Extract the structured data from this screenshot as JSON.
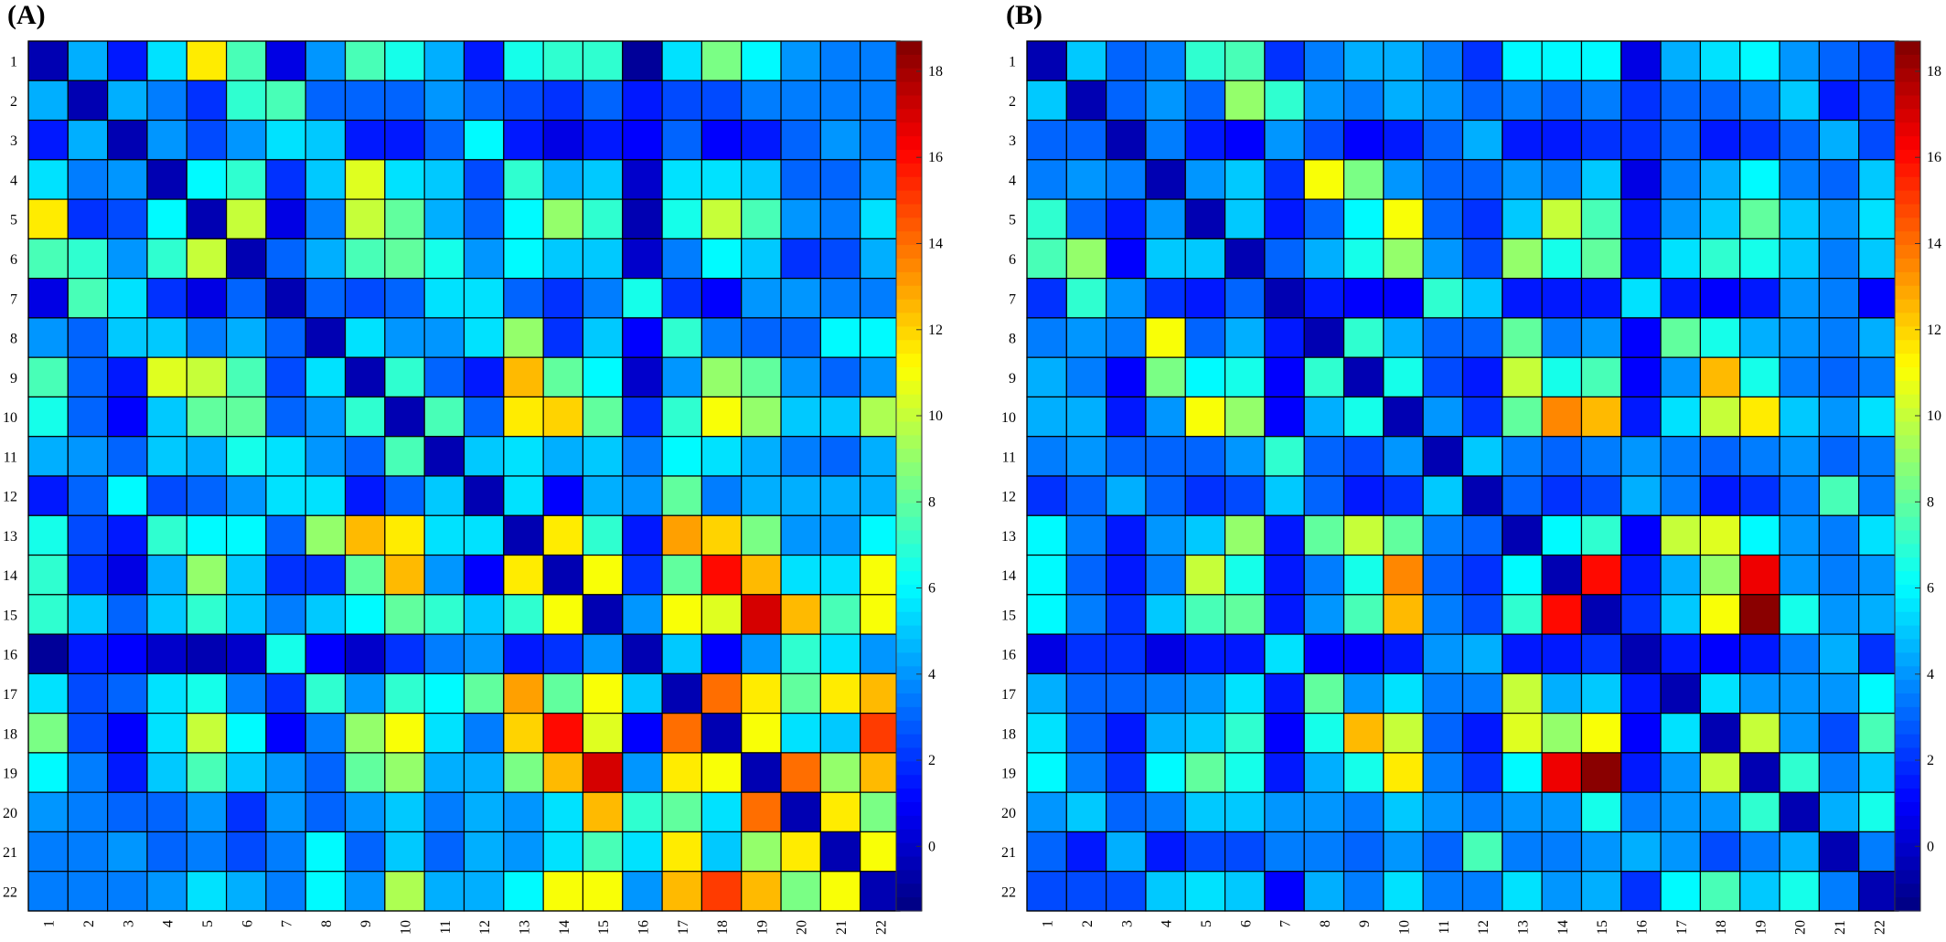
{
  "chart_data": [
    {
      "type": "heatmap",
      "title": "(A)",
      "categories": [
        "1",
        "2",
        "3",
        "4",
        "5",
        "6",
        "7",
        "8",
        "9",
        "10",
        "11",
        "12",
        "13",
        "14",
        "15",
        "16",
        "17",
        "18",
        "19",
        "20",
        "21",
        "22"
      ],
      "colorbar_ticks": [
        0,
        2,
        4,
        6,
        8,
        10,
        12,
        14,
        16,
        18
      ],
      "colorbar_range": [
        -1.5,
        18.7
      ],
      "colormap": "jet",
      "values": [
        [
          -0.5,
          4.5,
          1.5,
          5.5,
          11.5,
          7.5,
          0.5,
          4,
          7.5,
          6.5,
          4.5,
          1.5,
          6.5,
          7,
          7,
          -1,
          5.5,
          8.5,
          6,
          4,
          3.5,
          3.5
        ],
        [
          4.5,
          -0.5,
          4.5,
          3.5,
          2,
          7,
          7.5,
          3,
          3,
          3,
          4,
          3,
          2.5,
          2,
          3,
          1.5,
          2.5,
          2.5,
          3.5,
          3.5,
          3.5,
          3.5
        ],
        [
          1.5,
          4.5,
          -0.5,
          4,
          2.5,
          4,
          5.5,
          5,
          1.5,
          1.5,
          3,
          6,
          1.5,
          0.5,
          1.5,
          1,
          3,
          1,
          1.5,
          3,
          4,
          3.5
        ],
        [
          5.5,
          3.5,
          4,
          -0.5,
          6,
          7,
          2,
          5,
          10.5,
          5.5,
          5,
          2.5,
          7,
          4.5,
          5,
          0,
          5.5,
          5.5,
          5,
          3,
          3,
          4
        ],
        [
          11.5,
          2,
          2.5,
          6,
          -0.5,
          10,
          0.5,
          3.5,
          10,
          8,
          4.5,
          3,
          6,
          9,
          7,
          -0.5,
          6.5,
          10,
          7.5,
          4,
          3.5,
          5.5
        ],
        [
          7.5,
          7,
          4,
          7,
          10,
          -0.5,
          3,
          4.5,
          7.5,
          8,
          6.5,
          4,
          6,
          5,
          5,
          0,
          3.5,
          6,
          5,
          2,
          2.5,
          4.5
        ],
        [
          0.5,
          7.5,
          5.5,
          2,
          0.5,
          3,
          -0.5,
          3,
          2.5,
          3,
          5.5,
          5.5,
          3,
          2,
          3.5,
          6.5,
          2,
          1,
          4,
          4,
          3.5,
          3.5
        ],
        [
          4,
          3,
          5,
          5,
          3.5,
          4.5,
          3,
          -0.5,
          5.5,
          4,
          4,
          5.5,
          9,
          2,
          5,
          1,
          7,
          3.5,
          3,
          3,
          6,
          6
        ],
        [
          7.5,
          3,
          1.5,
          10.5,
          10,
          7.5,
          2.5,
          5.5,
          -0.5,
          7,
          3,
          1.5,
          12.5,
          8,
          6,
          0,
          4,
          9,
          8,
          4,
          3,
          4
        ],
        [
          6.5,
          3,
          1,
          5,
          8,
          8,
          3,
          4,
          7,
          -0.5,
          7.5,
          3,
          11.5,
          12,
          8,
          2,
          7,
          11,
          9,
          5,
          5,
          9.5
        ],
        [
          4.5,
          4,
          3,
          5,
          4.5,
          6.5,
          5.5,
          4,
          3,
          7.5,
          -0.5,
          5,
          5.5,
          4.5,
          5,
          3.5,
          6,
          5.5,
          4.5,
          3.5,
          3,
          4.5
        ],
        [
          1.5,
          3,
          6,
          2.5,
          3,
          4,
          5.5,
          5.5,
          1.5,
          3,
          5,
          -0.5,
          5.5,
          1,
          4.5,
          4,
          8,
          3.5,
          4.5,
          4.5,
          4.5,
          4.5
        ],
        [
          6.5,
          2.5,
          1.5,
          7,
          6,
          6,
          3,
          9,
          12.5,
          11.5,
          5.5,
          5.5,
          -0.5,
          11.5,
          7,
          1.5,
          13,
          12,
          8.5,
          4,
          4,
          6
        ],
        [
          7,
          2,
          0.5,
          4.5,
          9,
          5,
          2,
          2,
          8,
          12.5,
          4,
          1,
          11.5,
          -0.5,
          11,
          2,
          8,
          16,
          12.5,
          5.5,
          5.5,
          11
        ],
        [
          7,
          5,
          3,
          5,
          7,
          5,
          3.5,
          5,
          6,
          8,
          7,
          5,
          7,
          11,
          -0.5,
          4,
          11,
          10.5,
          17,
          12.5,
          7.5,
          11
        ],
        [
          -1,
          1.5,
          1,
          0,
          -0.5,
          0,
          6.5,
          1,
          0,
          2,
          3.5,
          4,
          1.5,
          2,
          4,
          -0.5,
          5,
          1,
          4,
          7,
          5.5,
          4
        ],
        [
          5.5,
          2.5,
          3,
          5.5,
          6.5,
          3.5,
          2,
          7,
          4,
          7,
          6,
          8,
          13,
          8,
          11,
          5,
          -0.5,
          14,
          11.5,
          8,
          11.5,
          12.5
        ],
        [
          8.5,
          2.5,
          1,
          5.5,
          10,
          6,
          1,
          3.5,
          9,
          11,
          5.5,
          3.5,
          12,
          16,
          10.5,
          1,
          14,
          -0.5,
          11,
          5.5,
          5,
          15
        ],
        [
          6,
          3.5,
          1.5,
          5,
          7.5,
          5,
          4,
          3,
          8,
          9,
          4.5,
          4.5,
          8.5,
          12.5,
          17,
          4,
          11.5,
          11,
          -0.5,
          14,
          9,
          12.5
        ],
        [
          4,
          3.5,
          3,
          3,
          4,
          2,
          4,
          3,
          4,
          5,
          3.5,
          4.5,
          4,
          5.5,
          12.5,
          7,
          8,
          5.5,
          14,
          -0.5,
          11.5,
          8.5
        ],
        [
          3.5,
          3.5,
          4,
          3,
          3.5,
          2.5,
          3.5,
          6,
          3,
          5,
          3,
          4.5,
          4,
          5.5,
          7.5,
          5.5,
          11.5,
          5,
          9,
          11.5,
          -0.5,
          11
        ],
        [
          3.5,
          3.5,
          3.5,
          4,
          5.5,
          4.5,
          3.5,
          6,
          4,
          9.5,
          4.5,
          4.5,
          6,
          11,
          11,
          4,
          12.5,
          15,
          12.5,
          8.5,
          11,
          -0.5
        ]
      ]
    },
    {
      "type": "heatmap",
      "title": "(B)",
      "categories": [
        "1",
        "2",
        "3",
        "4",
        "5",
        "6",
        "7",
        "8",
        "9",
        "10",
        "11",
        "12",
        "13",
        "14",
        "15",
        "16",
        "17",
        "18",
        "19",
        "20",
        "21",
        "22"
      ],
      "colorbar_ticks": [
        0,
        2,
        4,
        6,
        8,
        10,
        12,
        14,
        16,
        18
      ],
      "colorbar_range": [
        -1.5,
        18.7
      ],
      "colormap": "jet",
      "values": [
        [
          -0.5,
          5,
          3,
          3.5,
          7,
          7.5,
          2,
          3.5,
          4.5,
          4.5,
          3.5,
          2,
          6,
          6,
          6,
          0.5,
          4.5,
          5.5,
          6,
          4,
          3,
          2.5
        ],
        [
          5,
          -0.5,
          3,
          4,
          3,
          9,
          7,
          4,
          3.5,
          4.5,
          4,
          3,
          3.5,
          3,
          3.5,
          2,
          3,
          3,
          3.5,
          5,
          1.5,
          2.5
        ],
        [
          3,
          3,
          -0.5,
          3.5,
          1.5,
          1,
          4,
          2.5,
          1,
          1.5,
          3,
          4.5,
          1.5,
          1.5,
          2,
          2,
          3,
          1.5,
          2,
          3,
          4.5,
          2.5
        ],
        [
          3.5,
          4,
          3.5,
          -0.5,
          4,
          5,
          2,
          11,
          8.5,
          4,
          3,
          3,
          4,
          3.5,
          5,
          0.5,
          3.5,
          4.5,
          6,
          3.5,
          3,
          5
        ],
        [
          7,
          3,
          1.5,
          4,
          -0.5,
          5,
          1.5,
          3,
          6,
          11,
          3,
          2,
          5,
          10,
          7.5,
          1.5,
          4,
          5,
          8,
          5,
          4,
          5.5
        ],
        [
          7.5,
          9,
          1,
          5,
          5,
          -0.5,
          3,
          4.5,
          6.5,
          9,
          4,
          2.5,
          9,
          6.5,
          8,
          1.5,
          5.5,
          7,
          6.5,
          5,
          3.5,
          5
        ],
        [
          2,
          7,
          4,
          2,
          1.5,
          3,
          -0.5,
          1.5,
          1,
          1,
          7,
          5,
          1.5,
          1.5,
          1.5,
          5.5,
          1.5,
          1,
          1.5,
          4,
          3.5,
          1
        ],
        [
          3.5,
          4,
          3.5,
          11,
          3,
          4.5,
          1.5,
          -0.5,
          7,
          4.5,
          3,
          3,
          8,
          3.5,
          4,
          1,
          8,
          6.5,
          4.5,
          4,
          3.5,
          4.5
        ],
        [
          4.5,
          3.5,
          1,
          8.5,
          6,
          6.5,
          1,
          7,
          -0.5,
          6.5,
          2.5,
          1.5,
          10,
          6.5,
          7.5,
          1,
          4,
          12.5,
          6.5,
          3.5,
          3,
          3.5
        ],
        [
          4.5,
          4.5,
          1.5,
          4,
          11,
          9,
          1,
          4.5,
          6.5,
          -0.5,
          4,
          2,
          8,
          13.5,
          12.5,
          1.5,
          5.5,
          10,
          11.5,
          5,
          4,
          5.5
        ],
        [
          3.5,
          4,
          3,
          3,
          3,
          4,
          7,
          3,
          2.5,
          4,
          -0.5,
          5,
          3.5,
          3,
          3.5,
          4,
          3.5,
          3,
          3.5,
          4,
          3,
          3.5
        ],
        [
          2,
          3,
          4.5,
          3,
          2,
          2.5,
          5,
          3,
          1.5,
          2,
          5,
          -0.5,
          3,
          2,
          2.5,
          4.5,
          3.5,
          1.5,
          2,
          3.5,
          7.5,
          3.5
        ],
        [
          6,
          3.5,
          1.5,
          4,
          5,
          9,
          1.5,
          8,
          10,
          8,
          3.5,
          3,
          -0.5,
          6,
          7,
          1,
          10,
          10.5,
          6,
          4,
          3.5,
          5.5
        ],
        [
          6,
          3,
          1.5,
          3.5,
          10,
          6.5,
          1.5,
          3.5,
          6.5,
          13.5,
          3,
          2,
          6,
          -0.5,
          16,
          1.5,
          4.5,
          9,
          16.5,
          4,
          3.5,
          4
        ],
        [
          6,
          3.5,
          2,
          5,
          7.5,
          8,
          1.5,
          4,
          7.5,
          12.5,
          3.5,
          2.5,
          7,
          16,
          -0.5,
          2,
          5,
          11,
          18.5,
          6.5,
          4,
          4.5
        ],
        [
          0.5,
          2,
          2,
          0.5,
          1.5,
          1.5,
          5.5,
          1,
          1,
          1.5,
          4,
          4.5,
          1.5,
          1.5,
          2,
          -0.5,
          1.5,
          1,
          1.5,
          3.5,
          4.5,
          2
        ],
        [
          4.5,
          3,
          3,
          3.5,
          4,
          5.5,
          1.5,
          8,
          4,
          5.5,
          3.5,
          3.5,
          10,
          4.5,
          5,
          1.5,
          -0.5,
          5.5,
          4,
          4,
          4,
          6
        ],
        [
          5.5,
          3,
          1.5,
          4.5,
          5,
          7,
          1,
          6.5,
          12.5,
          10,
          3,
          1.5,
          10.5,
          9,
          11,
          1,
          5.5,
          -0.5,
          10,
          4,
          2.5,
          7.5
        ],
        [
          6,
          3.5,
          2,
          6,
          8,
          6.5,
          1.5,
          4.5,
          6.5,
          11.5,
          3.5,
          2,
          6,
          16.5,
          18.5,
          1.5,
          4,
          10,
          -0.5,
          7,
          3.5,
          5
        ],
        [
          4,
          5,
          3,
          3.5,
          5,
          5,
          4,
          4,
          3.5,
          5,
          4,
          3.5,
          4,
          4,
          6.5,
          3.5,
          4,
          4,
          7,
          -0.5,
          4.5,
          6.5
        ],
        [
          3,
          1.5,
          4.5,
          1.5,
          2.5,
          2.5,
          3.5,
          3.5,
          3,
          4,
          3,
          7.5,
          3.5,
          3.5,
          4,
          4.5,
          4,
          2.5,
          3.5,
          4.5,
          -0.5,
          3.5
        ],
        [
          2.5,
          2.5,
          2.5,
          5,
          5.5,
          5,
          1,
          4.5,
          3.5,
          5.5,
          3.5,
          3.5,
          5.5,
          4,
          4.5,
          2,
          6,
          7.5,
          5,
          6.5,
          3.5,
          -0.5
        ]
      ]
    }
  ]
}
